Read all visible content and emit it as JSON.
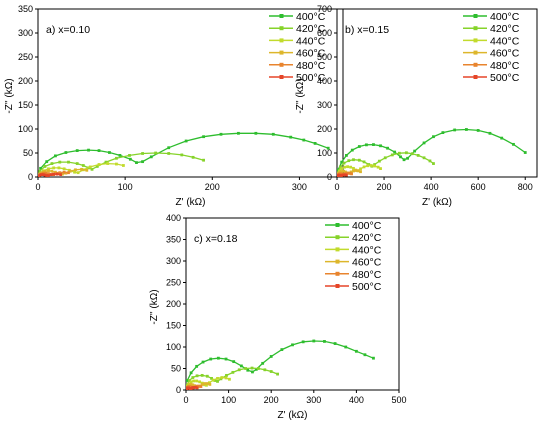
{
  "chart_data": [
    {
      "type": "line",
      "panel_label": "a) x=0.10",
      "xlabel": "Z' (kΩ)",
      "ylabel": "-Z'' (kΩ)",
      "xlim": [
        0,
        350
      ],
      "ylim": [
        0,
        350
      ],
      "xticks": [
        0,
        100,
        200,
        300
      ],
      "yticks": [
        0,
        50,
        100,
        150,
        200,
        250,
        300,
        350
      ],
      "legend_position": "top-right",
      "series": [
        {
          "name": "400°C",
          "color": "#2ebd2e",
          "x": [
            3,
            10,
            20,
            32,
            45,
            58,
            70,
            82,
            94,
            106,
            113,
            120,
            130,
            150,
            170,
            190,
            210,
            230,
            250,
            270,
            290,
            305,
            318,
            333
          ],
          "y": [
            18,
            32,
            44,
            51,
            55,
            56,
            55,
            51,
            45,
            37,
            30,
            32,
            42,
            61,
            75,
            84,
            89,
            91,
            91,
            89,
            83,
            77,
            70,
            60
          ]
        },
        {
          "name": "420°C",
          "color": "#86d32a",
          "x": [
            2,
            8,
            16,
            25,
            35,
            45,
            52,
            58,
            62,
            68,
            78,
            90,
            105,
            120,
            135,
            150,
            165,
            178,
            190
          ],
          "y": [
            12,
            22,
            28,
            31,
            31,
            28,
            24,
            19,
            16,
            22,
            31,
            39,
            45,
            49,
            50,
            49,
            46,
            41,
            35
          ]
        },
        {
          "name": "440°C",
          "color": "#c2db2c",
          "x": [
            2,
            6,
            12,
            18,
            24,
            30,
            36,
            42,
            46,
            52,
            60,
            70,
            80,
            90,
            98
          ],
          "y": [
            7,
            13,
            17,
            19,
            19,
            17,
            14,
            10,
            9,
            15,
            21,
            26,
            28,
            27,
            24
          ]
        },
        {
          "name": "460°C",
          "color": "#ddb62b",
          "x": [
            1,
            4,
            8,
            12,
            16,
            20,
            24,
            28,
            32,
            37,
            43,
            50,
            56
          ],
          "y": [
            5,
            9,
            12,
            13,
            12,
            10,
            8,
            6,
            8,
            12,
            15,
            16,
            14
          ]
        },
        {
          "name": "480°C",
          "color": "#e8842e",
          "x": [
            1,
            3,
            6,
            9,
            12,
            15,
            18,
            21,
            25,
            30,
            35
          ],
          "y": [
            3,
            6,
            8,
            8,
            7,
            5,
            5,
            7,
            9,
            10,
            9
          ]
        },
        {
          "name": "500°C",
          "color": "#e54528",
          "x": [
            1,
            2,
            4,
            6,
            8,
            10,
            12,
            15,
            18,
            22,
            26
          ],
          "y": [
            2,
            4,
            5,
            5,
            4,
            3,
            3,
            5,
            6,
            6,
            5
          ]
        }
      ]
    },
    {
      "type": "line",
      "panel_label": "b) x=0.15",
      "xlabel": "Z' (kΩ)",
      "ylabel": "-Z'' (kΩ)",
      "xlim": [
        0,
        850
      ],
      "ylim": [
        0,
        700
      ],
      "xticks": [
        0,
        200,
        400,
        600,
        800
      ],
      "yticks": [
        0,
        100,
        200,
        300,
        400,
        500,
        600,
        700
      ],
      "legend_position": "top-right",
      "series": [
        {
          "name": "400°C",
          "color": "#2ebd2e",
          "x": [
            5,
            20,
            40,
            65,
            95,
            125,
            155,
            185,
            215,
            245,
            270,
            285,
            300,
            330,
            370,
            410,
            450,
            500,
            550,
            600,
            650,
            700,
            750,
            800
          ],
          "y": [
            30,
            62,
            90,
            112,
            127,
            134,
            135,
            130,
            120,
            104,
            84,
            72,
            78,
            108,
            142,
            168,
            185,
            196,
            198,
            194,
            182,
            162,
            136,
            102
          ]
        },
        {
          "name": "420°C",
          "color": "#86d32a",
          "x": [
            3,
            15,
            30,
            50,
            70,
            95,
            115,
            135,
            148,
            160,
            180,
            205,
            235,
            265,
            295,
            320,
            345,
            370,
            395,
            410
          ],
          "y": [
            18,
            42,
            58,
            68,
            72,
            70,
            63,
            52,
            45,
            52,
            66,
            80,
            92,
            99,
            101,
            97,
            90,
            80,
            67,
            56
          ]
        },
        {
          "name": "440°C",
          "color": "#c2db2c",
          "x": [
            2,
            10,
            20,
            32,
            45,
            58,
            70,
            80,
            88,
            100,
            115,
            130,
            145,
            160,
            175,
            185
          ],
          "y": [
            10,
            25,
            35,
            41,
            43,
            41,
            36,
            29,
            26,
            34,
            42,
            47,
            48,
            46,
            41,
            35
          ]
        },
        {
          "name": "460°C",
          "color": "#ddb62b",
          "x": [
            1,
            6,
            12,
            20,
            28,
            36,
            44,
            52,
            60,
            70,
            80,
            90,
            100
          ],
          "y": [
            6,
            14,
            20,
            23,
            24,
            21,
            17,
            16,
            21,
            25,
            27,
            26,
            22
          ]
        },
        {
          "name": "480°C",
          "color": "#e8842e",
          "x": [
            1,
            4,
            8,
            13,
            18,
            23,
            28,
            34,
            40,
            48,
            55,
            62
          ],
          "y": [
            4,
            9,
            12,
            14,
            13,
            11,
            10,
            13,
            15,
            16,
            15,
            13
          ]
        },
        {
          "name": "500°C",
          "color": "#e54528",
          "x": [
            1,
            3,
            6,
            9,
            12,
            15,
            19,
            24,
            29,
            34,
            40
          ],
          "y": [
            2,
            5,
            7,
            8,
            7,
            6,
            6,
            8,
            9,
            9,
            8
          ]
        }
      ]
    },
    {
      "type": "line",
      "panel_label": "c) x=0.18",
      "xlabel": "Z' (kΩ)",
      "ylabel": "-Z'' (kΩ)",
      "xlim": [
        0,
        500
      ],
      "ylim": [
        0,
        400
      ],
      "xticks": [
        0,
        100,
        200,
        300,
        400,
        500
      ],
      "yticks": [
        0,
        50,
        100,
        150,
        200,
        250,
        300,
        350,
        400
      ],
      "legend_position": "top-right",
      "series": [
        {
          "name": "400°C",
          "color": "#2ebd2e",
          "x": [
            3,
            12,
            25,
            40,
            58,
            76,
            94,
            112,
            130,
            145,
            156,
            165,
            180,
            200,
            225,
            250,
            275,
            300,
            325,
            350,
            375,
            400,
            420,
            440
          ],
          "y": [
            22,
            40,
            55,
            65,
            72,
            74,
            72,
            66,
            56,
            46,
            42,
            48,
            62,
            78,
            94,
            105,
            112,
            114,
            113,
            108,
            100,
            90,
            82,
            74
          ]
        },
        {
          "name": "420°C",
          "color": "#86d32a",
          "x": [
            2,
            8,
            16,
            26,
            38,
            50,
            60,
            68,
            74,
            82,
            95,
            110,
            125,
            140,
            155,
            170,
            185,
            200,
            215
          ],
          "y": [
            12,
            22,
            29,
            33,
            34,
            32,
            27,
            22,
            20,
            26,
            34,
            41,
            47,
            50,
            51,
            50,
            47,
            43,
            37
          ]
        },
        {
          "name": "440°C",
          "color": "#c2db2c",
          "x": [
            2,
            6,
            12,
            18,
            25,
            32,
            38,
            44,
            48,
            55,
            64,
            74,
            84,
            94,
            102
          ],
          "y": [
            8,
            14,
            19,
            21,
            21,
            19,
            16,
            12,
            11,
            17,
            23,
            27,
            29,
            28,
            25
          ]
        },
        {
          "name": "460°C",
          "color": "#ddb62b",
          "x": [
            1,
            4,
            8,
            12,
            16,
            20,
            24,
            28,
            32,
            38,
            44,
            50,
            56
          ],
          "y": [
            5,
            9,
            12,
            13,
            12,
            10,
            8,
            7,
            9,
            13,
            15,
            15,
            13
          ]
        },
        {
          "name": "480°C",
          "color": "#e8842e",
          "x": [
            1,
            3,
            6,
            9,
            12,
            15,
            18,
            21,
            25,
            30,
            35
          ],
          "y": [
            3,
            6,
            8,
            8,
            7,
            5,
            5,
            7,
            9,
            9,
            8
          ]
        },
        {
          "name": "500°C",
          "color": "#e54528",
          "x": [
            1,
            2,
            4,
            6,
            8,
            10,
            12,
            15,
            18,
            22,
            26
          ],
          "y": [
            2,
            4,
            5,
            5,
            4,
            3,
            3,
            5,
            6,
            6,
            5
          ]
        }
      ]
    }
  ]
}
